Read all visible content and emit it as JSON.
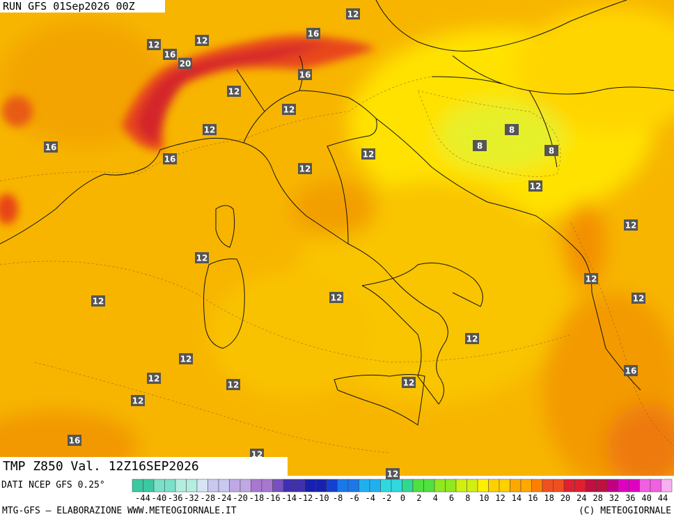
{
  "header": {
    "run": "RUN GFS 01Sep2026 00Z"
  },
  "contour_labels": [
    12,
    16,
    12,
    12,
    16,
    20,
    16,
    12,
    12,
    12,
    8,
    16,
    8,
    12,
    8,
    16,
    12,
    12,
    12,
    12,
    12,
    12,
    12,
    12,
    12,
    12,
    12,
    12,
    12,
    16,
    12,
    16,
    12,
    12
  ],
  "footer": {
    "field": "TMP Z850 Val. 12Z16SEP2026",
    "source": "DATI NCEP GFS 0.25°",
    "credit": "MTG-GFS — ELABORAZIONE WWW.METEOGIORNALE.IT",
    "copyright": "(C) METEOGIORNALE"
  },
  "colorbar": {
    "labels": [
      -44,
      -40,
      -36,
      -32,
      -28,
      -24,
      -20,
      -18,
      -16,
      -14,
      -12,
      -10,
      -8,
      -6,
      -4,
      -2,
      0,
      2,
      4,
      6,
      8,
      10,
      12,
      14,
      16,
      18,
      20,
      24,
      28,
      32,
      36,
      40,
      44
    ]
  }
}
